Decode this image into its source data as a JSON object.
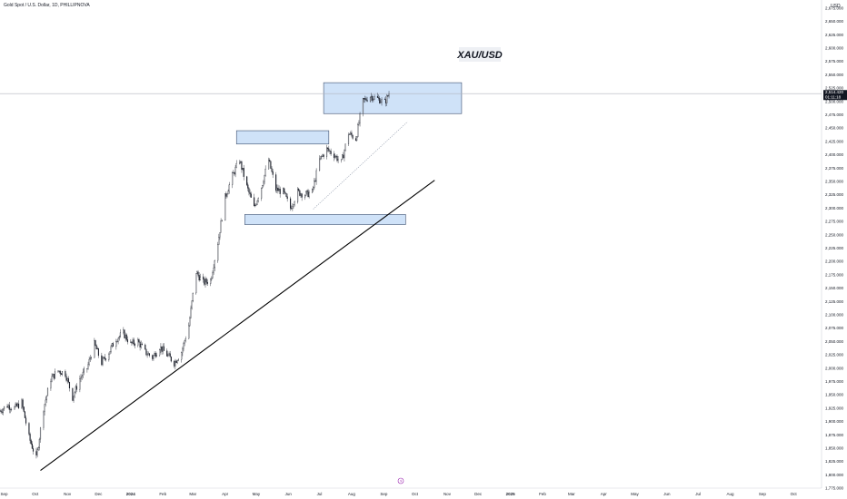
{
  "header": {
    "symbol": "Gold Spot / U.S. Dollar, 1D, PHILLIPNOVA",
    "currency": "USD"
  },
  "annotation": {
    "label": "XAU/USD"
  },
  "colors": {
    "candle": "#131722",
    "zone_fill": "#cfe2f8",
    "zone_border": "#3c4e6e",
    "trendline": "#000000",
    "price_line": "#b2b5be",
    "price_tag": "#131722",
    "marker": "#9c27b0"
  },
  "current_price": {
    "value": "2,514.420",
    "countdown": "01:11:18"
  },
  "marker_icon": "event-marker-icon",
  "chart_data": {
    "type": "candlestick",
    "title": "Gold Spot / U.S. Dollar, 1D, PHILLIPNOVA",
    "xlabel": "",
    "ylabel": "",
    "ylim": [
      1775,
      2690
    ],
    "x_range": [
      "2023-08-28",
      "2025-10-28"
    ],
    "grid": false,
    "x_ticks": [
      "Sep",
      "Oct",
      "Nov",
      "Dec",
      "2024",
      "Feb",
      "Mar",
      "Apr",
      "May",
      "Jun",
      "Jul",
      "Aug",
      "Sep",
      "Oct",
      "Nov",
      "Dec",
      "2025",
      "Feb",
      "Mar",
      "Apr",
      "May",
      "Jun",
      "Jul",
      "Aug",
      "Sep",
      "Oct"
    ],
    "x_tick_dates": [
      "2023-09-01",
      "2023-10-01",
      "2023-11-01",
      "2023-12-01",
      "2024-01-01",
      "2024-02-01",
      "2024-03-01",
      "2024-04-01",
      "2024-05-01",
      "2024-06-01",
      "2024-07-01",
      "2024-08-01",
      "2024-09-01",
      "2024-10-01",
      "2024-11-01",
      "2024-12-01",
      "2025-01-01",
      "2025-02-01",
      "2025-03-01",
      "2025-04-01",
      "2025-05-01",
      "2025-06-01",
      "2025-07-01",
      "2025-08-01",
      "2025-09-01",
      "2025-10-01"
    ],
    "y_ticks": [
      "2,675.000",
      "2,650.000",
      "2,625.000",
      "2,600.000",
      "2,575.000",
      "2,550.000",
      "2,525.000",
      "2,500.000",
      "2,475.000",
      "2,450.000",
      "2,425.000",
      "2,400.000",
      "2,375.000",
      "2,350.000",
      "2,325.000",
      "2,300.000",
      "2,275.000",
      "2,250.000",
      "2,225.000",
      "2,200.000",
      "2,175.000",
      "2,150.000",
      "2,125.000",
      "2,100.000",
      "2,075.000",
      "2,050.000",
      "2,025.000",
      "2,000.000",
      "1,975.000",
      "1,950.000",
      "1,925.000",
      "1,900.000",
      "1,875.000",
      "1,850.000",
      "1,825.000",
      "1,800.000",
      "1,775.000"
    ],
    "series": [
      {
        "values": [
          [
            "2023-08-28",
            1920
          ],
          [
            "2023-09-04",
            1930
          ],
          [
            "2023-09-11",
            1925
          ],
          [
            "2023-09-18",
            1935
          ],
          [
            "2023-09-25",
            1870
          ],
          [
            "2023-10-02",
            1830
          ],
          [
            "2023-10-09",
            1925
          ],
          [
            "2023-10-16",
            1980
          ],
          [
            "2023-10-23",
            1995
          ],
          [
            "2023-10-30",
            1990
          ],
          [
            "2023-11-06",
            1945
          ],
          [
            "2023-11-13",
            1980
          ],
          [
            "2023-11-20",
            2000
          ],
          [
            "2023-11-27",
            2045
          ],
          [
            "2023-12-04",
            2010
          ],
          [
            "2023-12-11",
            2030
          ],
          [
            "2023-12-18",
            2055
          ],
          [
            "2023-12-25",
            2065
          ],
          [
            "2024-01-01",
            2045
          ],
          [
            "2024-01-08",
            2050
          ],
          [
            "2024-01-15",
            2030
          ],
          [
            "2024-01-22",
            2020
          ],
          [
            "2024-01-29",
            2040
          ],
          [
            "2024-02-05",
            2025
          ],
          [
            "2024-02-12",
            2010
          ],
          [
            "2024-02-19",
            2030
          ],
          [
            "2024-02-26",
            2080
          ],
          [
            "2024-03-04",
            2180
          ],
          [
            "2024-03-11",
            2160
          ],
          [
            "2024-03-18",
            2165
          ],
          [
            "2024-03-25",
            2235
          ],
          [
            "2024-04-01",
            2320
          ],
          [
            "2024-04-08",
            2360
          ],
          [
            "2024-04-15",
            2390
          ],
          [
            "2024-04-22",
            2340
          ],
          [
            "2024-04-29",
            2300
          ],
          [
            "2024-05-06",
            2340
          ],
          [
            "2024-05-13",
            2390
          ],
          [
            "2024-05-20",
            2335
          ],
          [
            "2024-05-27",
            2330
          ],
          [
            "2024-06-03",
            2300
          ],
          [
            "2024-06-10",
            2330
          ],
          [
            "2024-06-17",
            2325
          ],
          [
            "2024-06-24",
            2330
          ],
          [
            "2024-07-01",
            2390
          ],
          [
            "2024-07-08",
            2410
          ],
          [
            "2024-07-15",
            2400
          ],
          [
            "2024-07-22",
            2385
          ],
          [
            "2024-07-29",
            2440
          ],
          [
            "2024-08-05",
            2430
          ],
          [
            "2024-08-12",
            2500
          ],
          [
            "2024-08-19",
            2510
          ],
          [
            "2024-08-26",
            2505
          ],
          [
            "2024-09-02",
            2498
          ],
          [
            "2024-09-06",
            2514.42
          ]
        ]
      }
    ],
    "annotations": {
      "zones": [
        {
          "x": [
            "2024-07-05",
            "2024-11-15"
          ],
          "y": [
            2477,
            2535
          ]
        },
        {
          "x": [
            "2024-04-12",
            "2024-07-10"
          ],
          "y": [
            2420,
            2445
          ]
        },
        {
          "x": [
            "2024-04-20",
            "2024-09-22"
          ],
          "y": [
            2269,
            2288
          ]
        }
      ],
      "trendlines": [
        {
          "from": [
            "2023-10-06",
            1808
          ],
          "to": [
            "2024-10-20",
            2352
          ],
          "style": "solid"
        },
        {
          "from": [
            "2024-06-25",
            2298
          ],
          "to": [
            "2024-09-24",
            2462
          ],
          "style": "dotted"
        }
      ]
    }
  }
}
